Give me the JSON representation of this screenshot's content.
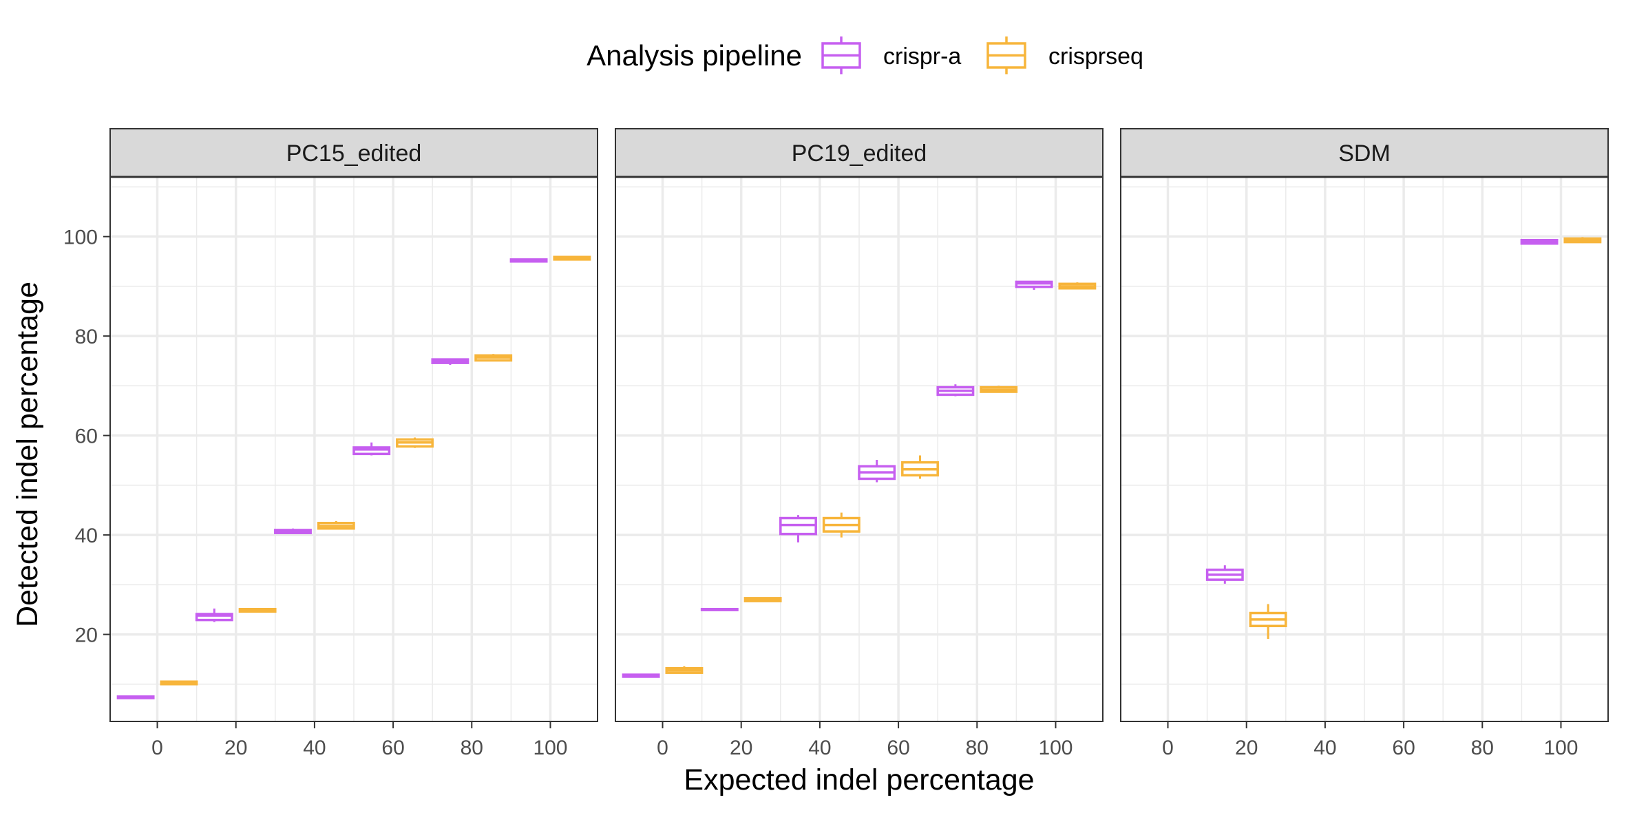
{
  "chart_data": {
    "type": "boxplot",
    "legend": {
      "title": "Analysis pipeline",
      "position": "top",
      "entries": [
        {
          "name": "crispr-a",
          "color": "#C65FF0"
        },
        {
          "name": "crisprseq",
          "color": "#F7B53B"
        }
      ]
    },
    "xlabel": "Expected indel percentage",
    "ylabel": "Detected indel percentage",
    "x_ticks": [
      0,
      20,
      40,
      60,
      80,
      100
    ],
    "y_ticks": [
      20,
      40,
      60,
      80,
      100
    ],
    "xlim": [
      -12,
      112
    ],
    "ylim": [
      2.5,
      112
    ],
    "grid": true,
    "facets": [
      {
        "name": "PC15_edited",
        "series": [
          {
            "name": "crispr-a",
            "boxes": [
              {
                "x": 0,
                "min": 7.1,
                "q1": 7.2,
                "median": 7.35,
                "q3": 7.5,
                "max": 7.6
              },
              {
                "x": 20,
                "min": 22.5,
                "q1": 22.9,
                "median": 23.8,
                "q3": 24.1,
                "max": 25.2
              },
              {
                "x": 40,
                "min": 40.2,
                "q1": 40.4,
                "median": 40.7,
                "q3": 41.0,
                "max": 41.3
              },
              {
                "x": 60,
                "min": 56.0,
                "q1": 56.3,
                "median": 57.2,
                "q3": 57.6,
                "max": 58.6
              },
              {
                "x": 80,
                "min": 74.2,
                "q1": 74.6,
                "median": 75.0,
                "q3": 75.3,
                "max": 75.5
              },
              {
                "x": 100,
                "min": 94.9,
                "q1": 95.0,
                "median": 95.2,
                "q3": 95.4,
                "max": 95.5
              }
            ]
          },
          {
            "name": "crisprseq",
            "boxes": [
              {
                "x": 0,
                "min": 9.9,
                "q1": 10.0,
                "median": 10.3,
                "q3": 10.5,
                "max": 10.6
              },
              {
                "x": 20,
                "min": 24.5,
                "q1": 24.6,
                "median": 24.9,
                "q3": 25.1,
                "max": 25.2
              },
              {
                "x": 40,
                "min": 41.2,
                "q1": 41.3,
                "median": 41.8,
                "q3": 42.4,
                "max": 42.8
              },
              {
                "x": 60,
                "min": 57.5,
                "q1": 57.8,
                "median": 58.6,
                "q3": 59.2,
                "max": 59.6
              },
              {
                "x": 80,
                "min": 74.9,
                "q1": 75.1,
                "median": 75.7,
                "q3": 76.1,
                "max": 76.4
              },
              {
                "x": 100,
                "min": 95.3,
                "q1": 95.4,
                "median": 95.7,
                "q3": 95.9,
                "max": 96.0
              }
            ]
          }
        ]
      },
      {
        "name": "PC19_edited",
        "series": [
          {
            "name": "crispr-a",
            "boxes": [
              {
                "x": 0,
                "min": 11.4,
                "q1": 11.5,
                "median": 11.8,
                "q3": 11.9,
                "max": 12.0
              },
              {
                "x": 20,
                "min": 24.8,
                "q1": 24.9,
                "median": 25.0,
                "q3": 25.1,
                "max": 25.2
              },
              {
                "x": 40,
                "min": 38.5,
                "q1": 40.2,
                "median": 42.0,
                "q3": 43.4,
                "max": 44.0
              },
              {
                "x": 60,
                "min": 50.6,
                "q1": 51.3,
                "median": 52.6,
                "q3": 53.8,
                "max": 55.1
              },
              {
                "x": 80,
                "min": 67.9,
                "q1": 68.2,
                "median": 69.0,
                "q3": 69.7,
                "max": 70.3
              },
              {
                "x": 100,
                "min": 89.3,
                "q1": 89.9,
                "median": 90.6,
                "q3": 90.9,
                "max": 91.0
              }
            ]
          },
          {
            "name": "crisprseq",
            "boxes": [
              {
                "x": 0,
                "min": 12.1,
                "q1": 12.3,
                "median": 12.8,
                "q3": 13.2,
                "max": 13.6
              },
              {
                "x": 20,
                "min": 26.6,
                "q1": 26.7,
                "median": 27.0,
                "q3": 27.3,
                "max": 27.4
              },
              {
                "x": 40,
                "min": 39.5,
                "q1": 40.7,
                "median": 42.0,
                "q3": 43.4,
                "max": 44.5
              },
              {
                "x": 60,
                "min": 51.3,
                "q1": 52.0,
                "median": 53.2,
                "q3": 54.6,
                "max": 56.0
              },
              {
                "x": 80,
                "min": 68.6,
                "q1": 68.8,
                "median": 69.2,
                "q3": 69.7,
                "max": 70.0
              },
              {
                "x": 100,
                "min": 89.4,
                "q1": 89.6,
                "median": 90.0,
                "q3": 90.5,
                "max": 90.8
              }
            ]
          }
        ]
      },
      {
        "name": "SDM",
        "series": [
          {
            "name": "crispr-a",
            "boxes": [
              {
                "x": 20,
                "min": 30.2,
                "q1": 31.0,
                "median": 32.0,
                "q3": 33.0,
                "max": 33.9
              },
              {
                "x": 100,
                "min": 98.5,
                "q1": 98.6,
                "median": 99.0,
                "q3": 99.3,
                "max": 99.4
              }
            ]
          },
          {
            "name": "crisprseq",
            "boxes": [
              {
                "x": 20,
                "min": 19.1,
                "q1": 21.7,
                "median": 23.0,
                "q3": 24.3,
                "max": 26.1
              },
              {
                "x": 100,
                "min": 98.7,
                "q1": 98.9,
                "median": 99.3,
                "q3": 99.6,
                "max": 99.9
              }
            ]
          }
        ]
      }
    ]
  }
}
